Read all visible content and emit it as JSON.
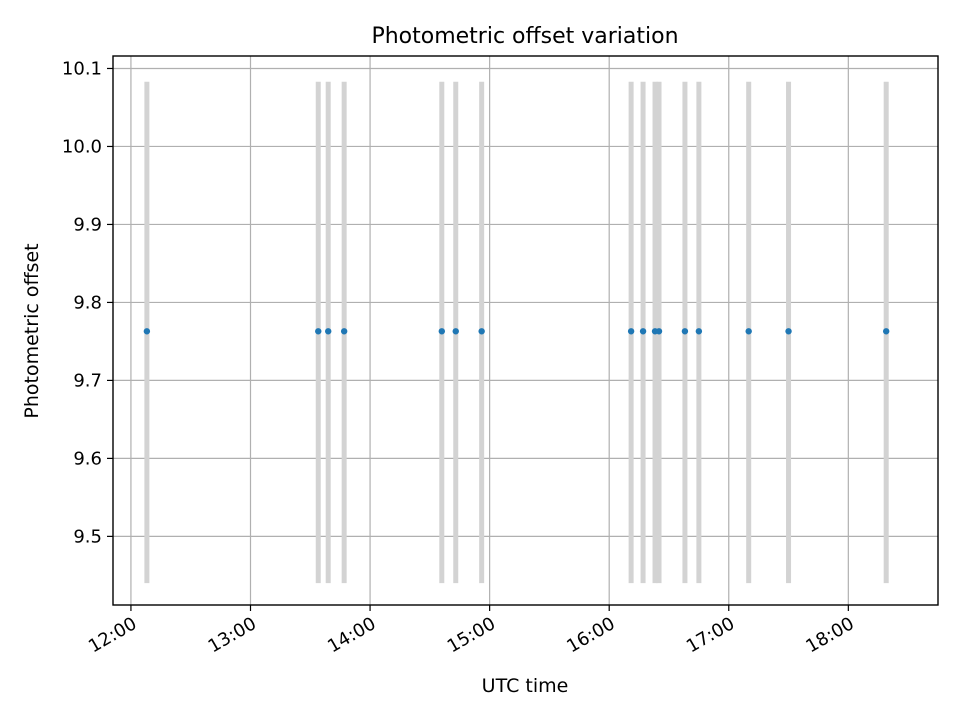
{
  "chart_data": {
    "type": "scatter",
    "title": "Photometric offset variation",
    "xlabel": "UTC time",
    "ylabel": "Photometric offset",
    "xlim": [
      "11:51",
      "18:45"
    ],
    "ylim": [
      9.412,
      10.116
    ],
    "x_ticks": [
      "12:00",
      "13:00",
      "14:00",
      "15:00",
      "16:00",
      "17:00",
      "18:00"
    ],
    "y_ticks": [
      9.5,
      9.6,
      9.7,
      9.8,
      9.9,
      10.0,
      10.1
    ],
    "y_tick_labels": [
      "9.5",
      "9.6",
      "9.7",
      "9.8",
      "9.9",
      "10.0",
      "10.1"
    ],
    "grid": true,
    "series": [
      {
        "color": "#1f77b4",
        "error_color": "#d3d3d3",
        "x": [
          "12:08",
          "13:34",
          "13:39",
          "13:47",
          "14:36",
          "14:43",
          "14:56",
          "16:11",
          "16:17",
          "16:23",
          "16:25",
          "16:38",
          "16:45",
          "17:10",
          "17:30",
          "18:19"
        ],
        "y": [
          9.763,
          9.763,
          9.763,
          9.763,
          9.763,
          9.763,
          9.763,
          9.763,
          9.763,
          9.763,
          9.763,
          9.763,
          9.763,
          9.763,
          9.763,
          9.763
        ],
        "y_err_low": [
          9.44,
          9.44,
          9.44,
          9.44,
          9.44,
          9.44,
          9.44,
          9.44,
          9.44,
          9.44,
          9.44,
          9.44,
          9.44,
          9.44,
          9.44,
          9.44
        ],
        "y_err_high": [
          10.083,
          10.083,
          10.083,
          10.083,
          10.083,
          10.083,
          10.083,
          10.083,
          10.083,
          10.083,
          10.083,
          10.083,
          10.083,
          10.083,
          10.083,
          10.083
        ]
      }
    ]
  }
}
